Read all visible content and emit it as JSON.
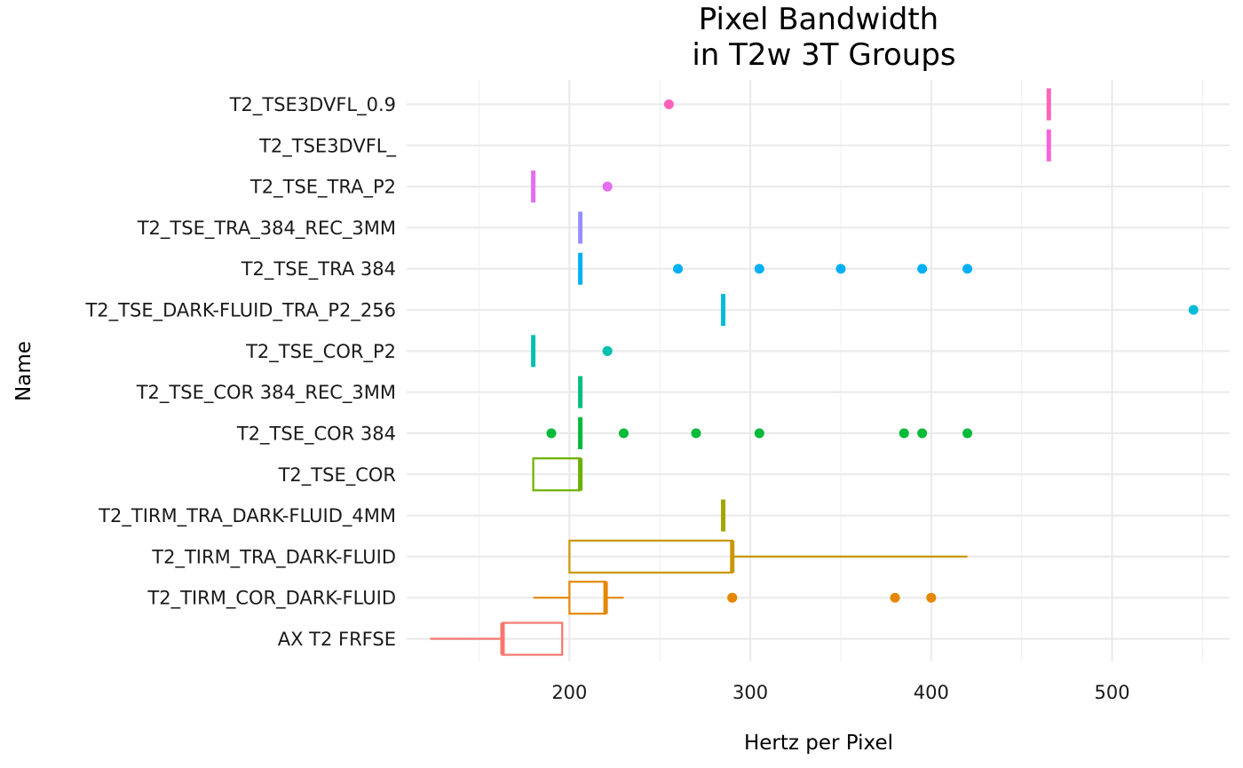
{
  "chart_data": {
    "type": "boxplot",
    "orientation": "horizontal",
    "title_lines": [
      "Pixel Bandwidth",
      "in T2w 3T Groups"
    ],
    "xlabel": "Hertz per Pixel",
    "ylabel": "Name",
    "xlim": [
      110,
      565
    ],
    "xticks": [
      200,
      300,
      400,
      500
    ],
    "xtick_labels": [
      "200",
      "300",
      "400",
      "500"
    ],
    "grid": true,
    "legend": "none",
    "categories": [
      "AX T2 FRFSE",
      "T2_TIRM_COR_DARK-FLUID",
      "T2_TIRM_TRA_DARK-FLUID",
      "T2_TIRM_TRA_DARK-FLUID_4MM",
      "T2_TSE_COR",
      "T2_TSE_COR 384",
      "T2_TSE_COR 384_REC_3MM",
      "T2_TSE_COR_P2",
      "T2_TSE_DARK-FLUID_TRA_P2_256",
      "T2_TSE_TRA 384",
      "T2_TSE_TRA_384_REC_3MM",
      "T2_TSE_TRA_P2",
      "T2_TSE3DVFL_",
      "T2_TSE3DVFL_0.9"
    ],
    "boxes": [
      {
        "name": "AX T2 FRFSE",
        "color": "#F8766D",
        "whisker_low": 123,
        "q1": 163,
        "median": 163,
        "q3": 196,
        "whisker_high": 196,
        "outliers": []
      },
      {
        "name": "T2_TIRM_COR_DARK-FLUID",
        "color": "#E58700",
        "whisker_low": 180,
        "q1": 200,
        "median": 220,
        "q3": 220,
        "whisker_high": 230,
        "outliers": [
          290,
          290,
          380,
          400
        ]
      },
      {
        "name": "T2_TIRM_TRA_DARK-FLUID",
        "color": "#C99800",
        "whisker_low": 200,
        "q1": 200,
        "median": 290,
        "q3": 290,
        "whisker_high": 420,
        "outliers": []
      },
      {
        "name": "T2_TIRM_TRA_DARK-FLUID_4MM",
        "color": "#A3A500",
        "whisker_low": 285,
        "q1": 285,
        "median": 285,
        "q3": 285,
        "whisker_high": 285,
        "outliers": []
      },
      {
        "name": "T2_TSE_COR",
        "color": "#6BB100",
        "whisker_low": 180,
        "q1": 180,
        "median": 206,
        "q3": 206,
        "whisker_high": 206,
        "outliers": []
      },
      {
        "name": "T2_TSE_COR 384",
        "color": "#00BA38",
        "whisker_low": 206,
        "q1": 206,
        "median": 206,
        "q3": 206,
        "whisker_high": 206,
        "outliers": [
          190,
          230,
          270,
          305,
          385,
          395,
          420
        ]
      },
      {
        "name": "T2_TSE_COR 384_REC_3MM",
        "color": "#00BF7D",
        "whisker_low": 206,
        "q1": 206,
        "median": 206,
        "q3": 206,
        "whisker_high": 206,
        "outliers": []
      },
      {
        "name": "T2_TSE_COR_P2",
        "color": "#00C0AF",
        "whisker_low": 180,
        "q1": 180,
        "median": 180,
        "q3": 180,
        "whisker_high": 180,
        "outliers": [
          221,
          221
        ]
      },
      {
        "name": "T2_TSE_DARK-FLUID_TRA_P2_256",
        "color": "#00BCD8",
        "whisker_low": 285,
        "q1": 285,
        "median": 285,
        "q3": 285,
        "whisker_high": 285,
        "outliers": [
          545
        ]
      },
      {
        "name": "T2_TSE_TRA 384",
        "color": "#00B0F6",
        "whisker_low": 206,
        "q1": 206,
        "median": 206,
        "q3": 206,
        "whisker_high": 206,
        "outliers": [
          260,
          305,
          350,
          395,
          420
        ]
      },
      {
        "name": "T2_TSE_TRA_384_REC_3MM",
        "color": "#9590FF",
        "whisker_low": 206,
        "q1": 206,
        "median": 206,
        "q3": 206,
        "whisker_high": 206,
        "outliers": []
      },
      {
        "name": "T2_TSE_TRA_P2",
        "color": "#E76BF3",
        "whisker_low": 180,
        "q1": 180,
        "median": 180,
        "q3": 180,
        "whisker_high": 180,
        "outliers": [
          221,
          221
        ]
      },
      {
        "name": "T2_TSE3DVFL_",
        "color": "#FA62DB",
        "whisker_low": 465,
        "q1": 465,
        "median": 465,
        "q3": 465,
        "whisker_high": 465,
        "outliers": []
      },
      {
        "name": "T2_TSE3DVFL_0.9",
        "color": "#FF62BC",
        "whisker_low": 465,
        "q1": 465,
        "median": 465,
        "q3": 465,
        "whisker_high": 465,
        "outliers": [
          255
        ]
      }
    ]
  }
}
